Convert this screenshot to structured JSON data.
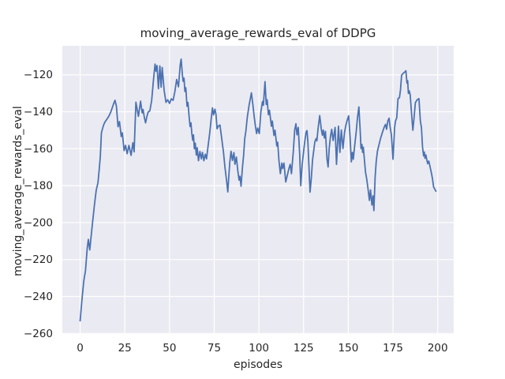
{
  "figure": {
    "title": "moving_average_rewards_eval of DDPG",
    "xlabel": "episodes",
    "ylabel": "moving_average_rewards_eval"
  },
  "style": {
    "figure_bg": "#ffffff",
    "axes_bg": "#eaeaf2",
    "grid_color": "#ffffff",
    "line_color": "#4c72b0",
    "text_color": "#262626"
  },
  "chart_data": {
    "type": "line",
    "title": "moving_average_rewards_eval of DDPG",
    "xlabel": "episodes",
    "ylabel": "moving_average_rewards_eval",
    "xlim": [
      -9.95,
      208.95
    ],
    "ylim": [
      -260.3,
      -104.3
    ],
    "x_ticks": [
      0,
      25,
      50,
      75,
      100,
      125,
      150,
      175,
      200
    ],
    "y_ticks": [
      -260,
      -240,
      -220,
      -200,
      -180,
      -160,
      -140,
      -120
    ],
    "grid": true,
    "legend": false,
    "series": [
      {
        "name": "moving_average_rewards_eval",
        "color": "#4c72b0",
        "points": [
          [
            0,
            -253.2
          ],
          [
            1,
            -242
          ],
          [
            2,
            -232
          ],
          [
            2.4,
            -229.5
          ],
          [
            3,
            -226
          ],
          [
            4,
            -213.5
          ],
          [
            4.6,
            -209.1
          ],
          [
            5.4,
            -214.8
          ],
          [
            6.2,
            -207
          ],
          [
            7,
            -199.5
          ],
          [
            8,
            -190.5
          ],
          [
            9,
            -182.5
          ],
          [
            10,
            -178.3
          ],
          [
            10.7,
            -171
          ],
          [
            11.3,
            -164.1
          ],
          [
            11.9,
            -151.4
          ],
          [
            12.3,
            -150
          ],
          [
            13,
            -147.5
          ],
          [
            13.8,
            -145.7
          ],
          [
            15,
            -144
          ],
          [
            16,
            -142.5
          ],
          [
            17,
            -140.5
          ],
          [
            17.7,
            -138.6
          ],
          [
            18.5,
            -136.3
          ],
          [
            19.5,
            -133.8
          ],
          [
            20.3,
            -137
          ],
          [
            21.2,
            -148.1
          ],
          [
            22,
            -145.3
          ],
          [
            23,
            -153.4
          ],
          [
            23.6,
            -151.4
          ],
          [
            24.6,
            -161
          ],
          [
            25.4,
            -158.2
          ],
          [
            26.3,
            -162.7
          ],
          [
            27.3,
            -158.2
          ],
          [
            28.5,
            -163.6
          ],
          [
            29.5,
            -156.8
          ],
          [
            30.2,
            -161.7
          ],
          [
            31.2,
            -134.8
          ],
          [
            32.6,
            -142.5
          ],
          [
            33.8,
            -134.3
          ],
          [
            34.7,
            -140.6
          ],
          [
            35.2,
            -138.8
          ],
          [
            36,
            -143.5
          ],
          [
            36.6,
            -146
          ],
          [
            37.3,
            -142.8
          ],
          [
            38,
            -140.2
          ],
          [
            39,
            -139.5
          ],
          [
            40,
            -134
          ],
          [
            41,
            -123
          ],
          [
            41.9,
            -114.2
          ],
          [
            42.4,
            -118
          ],
          [
            43,
            -115
          ],
          [
            43.8,
            -127.5
          ],
          [
            44.6,
            -115.2
          ],
          [
            45.3,
            -126.7
          ],
          [
            45.9,
            -116
          ],
          [
            47,
            -128.5
          ],
          [
            48,
            -134.9
          ],
          [
            49,
            -133.5
          ],
          [
            50,
            -135.5
          ],
          [
            51,
            -133
          ],
          [
            52,
            -133.8
          ],
          [
            53,
            -129
          ],
          [
            54,
            -122.5
          ],
          [
            55,
            -126.5
          ],
          [
            56,
            -114.5
          ],
          [
            56.5,
            -111.5
          ],
          [
            57.2,
            -120
          ],
          [
            57.6,
            -123.5
          ],
          [
            58.1,
            -121.8
          ],
          [
            58.6,
            -129
          ],
          [
            59.1,
            -127
          ],
          [
            59.8,
            -137
          ],
          [
            60.3,
            -135
          ],
          [
            61,
            -143
          ],
          [
            61.5,
            -148
          ],
          [
            62,
            -146
          ],
          [
            62.5,
            -152
          ],
          [
            63,
            -155.5
          ],
          [
            63.4,
            -152.5
          ],
          [
            63.9,
            -160
          ],
          [
            64.4,
            -157
          ],
          [
            65,
            -163.5
          ],
          [
            65.5,
            -159.5
          ],
          [
            66.2,
            -166.5
          ],
          [
            67,
            -161.5
          ],
          [
            67.8,
            -165.5
          ],
          [
            68.4,
            -162
          ],
          [
            69.2,
            -166.5
          ],
          [
            70,
            -163
          ],
          [
            70.7,
            -165.5
          ],
          [
            71.5,
            -159
          ],
          [
            72.5,
            -151.4
          ],
          [
            73.3,
            -144
          ],
          [
            74,
            -137.9
          ],
          [
            74.6,
            -141.7
          ],
          [
            75.4,
            -138.6
          ],
          [
            76,
            -141.5
          ],
          [
            76.6,
            -149.2
          ],
          [
            77.3,
            -147.8
          ],
          [
            78.2,
            -147.2
          ],
          [
            79,
            -153
          ],
          [
            80.2,
            -162.1
          ],
          [
            81,
            -170
          ],
          [
            82,
            -178
          ],
          [
            82.6,
            -183.4
          ],
          [
            83.3,
            -173
          ],
          [
            83.7,
            -167.5
          ],
          [
            84.4,
            -161.4
          ],
          [
            85.2,
            -166.3
          ],
          [
            86,
            -162.1
          ],
          [
            86.6,
            -168.4
          ],
          [
            87.4,
            -164.5
          ],
          [
            88.2,
            -172
          ],
          [
            88.9,
            -177
          ],
          [
            89.4,
            -174.9
          ],
          [
            90,
            -180.3
          ],
          [
            90.8,
            -170
          ],
          [
            91.4,
            -164
          ],
          [
            92.1,
            -154.3
          ],
          [
            92.7,
            -150.5
          ],
          [
            93.5,
            -143
          ],
          [
            94.5,
            -136.5
          ],
          [
            95.8,
            -129.8
          ],
          [
            96.6,
            -136
          ],
          [
            97.4,
            -143
          ],
          [
            98,
            -147.5
          ],
          [
            98.7,
            -151.8
          ],
          [
            99.3,
            -148.8
          ],
          [
            100.2,
            -151.8
          ],
          [
            101.1,
            -140
          ],
          [
            102,
            -134.5
          ],
          [
            102.5,
            -136.5
          ],
          [
            103.4,
            -123.7
          ],
          [
            104.1,
            -136
          ],
          [
            104.6,
            -133.5
          ],
          [
            105.3,
            -141.6
          ],
          [
            105.9,
            -139.2
          ],
          [
            107,
            -147.9
          ],
          [
            107.5,
            -145
          ],
          [
            108.4,
            -152.8
          ],
          [
            109,
            -150
          ],
          [
            110,
            -158.5
          ],
          [
            110.5,
            -156.5
          ],
          [
            111.2,
            -166.4
          ],
          [
            112,
            -173.5
          ],
          [
            112.8,
            -167.8
          ],
          [
            113.3,
            -170.7
          ],
          [
            114,
            -167.8
          ],
          [
            115,
            -178
          ],
          [
            116.1,
            -173.5
          ],
          [
            116.9,
            -170.3
          ],
          [
            117.5,
            -168.5
          ],
          [
            118.2,
            -173.5
          ],
          [
            119.2,
            -162
          ],
          [
            120,
            -150
          ],
          [
            120.7,
            -146.5
          ],
          [
            121.3,
            -152.5
          ],
          [
            122,
            -148.5
          ],
          [
            122.8,
            -163
          ],
          [
            123.4,
            -180
          ],
          [
            124.2,
            -168.5
          ],
          [
            125,
            -161.5
          ],
          [
            125.7,
            -155.7
          ],
          [
            126.4,
            -151
          ],
          [
            126.9,
            -150.2
          ],
          [
            127.4,
            -156.5
          ],
          [
            128,
            -170
          ],
          [
            128.6,
            -183.5
          ],
          [
            129.3,
            -176
          ],
          [
            130,
            -166
          ],
          [
            130.6,
            -161.5
          ],
          [
            131.3,
            -156.2
          ],
          [
            132,
            -154.5
          ],
          [
            132.4,
            -155.8
          ],
          [
            133.1,
            -149
          ],
          [
            134,
            -142.1
          ],
          [
            134.9,
            -149.5
          ],
          [
            135.5,
            -152.7
          ],
          [
            136,
            -149.9
          ],
          [
            136.6,
            -154.2
          ],
          [
            137.2,
            -150.6
          ],
          [
            138.1,
            -165.7
          ],
          [
            138.7,
            -169.9
          ],
          [
            139.3,
            -160
          ],
          [
            140,
            -153.5
          ],
          [
            140.7,
            -149.5
          ],
          [
            141.5,
            -155.6
          ],
          [
            142.6,
            -148.5
          ],
          [
            143.4,
            -168.5
          ],
          [
            144.5,
            -147.8
          ],
          [
            145.3,
            -162
          ],
          [
            146.1,
            -149.9
          ],
          [
            147,
            -159.9
          ],
          [
            147.9,
            -151
          ],
          [
            148.7,
            -147
          ],
          [
            149.4,
            -144.5
          ],
          [
            150.2,
            -142.2
          ],
          [
            151,
            -154
          ],
          [
            151.7,
            -167.1
          ],
          [
            152.3,
            -162
          ],
          [
            152.8,
            -165.7
          ],
          [
            153.6,
            -158
          ],
          [
            154.4,
            -151
          ],
          [
            155.1,
            -143.5
          ],
          [
            155.9,
            -137.4
          ],
          [
            156.4,
            -146
          ],
          [
            156.7,
            -151.4
          ],
          [
            157.1,
            -159.9
          ],
          [
            157.6,
            -157.7
          ],
          [
            158,
            -162
          ],
          [
            158.4,
            -159.2
          ],
          [
            159,
            -166
          ],
          [
            159.6,
            -172.6
          ],
          [
            160.3,
            -176.5
          ],
          [
            161,
            -181.5
          ],
          [
            161.8,
            -188
          ],
          [
            162.4,
            -182.3
          ],
          [
            163.2,
            -190.5
          ],
          [
            163.8,
            -185.5
          ],
          [
            164.3,
            -193.5
          ],
          [
            165,
            -175.4
          ],
          [
            165.6,
            -167
          ],
          [
            166.3,
            -161.3
          ],
          [
            167.2,
            -157.7
          ],
          [
            168.1,
            -154.2
          ],
          [
            169,
            -151.4
          ],
          [
            170,
            -148.5
          ],
          [
            170.8,
            -146.8
          ],
          [
            171.4,
            -149.5
          ],
          [
            172.1,
            -145
          ],
          [
            172.8,
            -143.5
          ],
          [
            173.4,
            -148.5
          ],
          [
            174.1,
            -152.5
          ],
          [
            175,
            -165.7
          ],
          [
            175.9,
            -148.5
          ],
          [
            176.4,
            -145
          ],
          [
            177.1,
            -143.2
          ],
          [
            177.8,
            -132.9
          ],
          [
            178.6,
            -132.4
          ],
          [
            179.2,
            -128
          ],
          [
            179.8,
            -120.2
          ],
          [
            180.7,
            -119.2
          ],
          [
            181.6,
            -118.5
          ],
          [
            182.2,
            -117.8
          ],
          [
            182.8,
            -124.5
          ],
          [
            183.2,
            -123.2
          ],
          [
            183.6,
            -130.1
          ],
          [
            184.1,
            -128.7
          ],
          [
            184.6,
            -130.8
          ],
          [
            185.3,
            -140
          ],
          [
            186.1,
            -150
          ],
          [
            186.8,
            -143
          ],
          [
            187.5,
            -135.1
          ],
          [
            188.4,
            -133.6
          ],
          [
            189.5,
            -132.9
          ],
          [
            190.3,
            -145
          ],
          [
            190.9,
            -148.5
          ],
          [
            191.5,
            -159
          ],
          [
            192.1,
            -163.9
          ],
          [
            192.5,
            -161.8
          ],
          [
            192.9,
            -165.2
          ],
          [
            193.4,
            -163.4
          ],
          [
            193.9,
            -166
          ],
          [
            194.4,
            -168.1
          ],
          [
            195,
            -166.7
          ],
          [
            195.5,
            -168.8
          ],
          [
            196.6,
            -173.7
          ],
          [
            197.1,
            -176.5
          ],
          [
            197.7,
            -180.7
          ],
          [
            199,
            -183
          ]
        ]
      }
    ]
  }
}
